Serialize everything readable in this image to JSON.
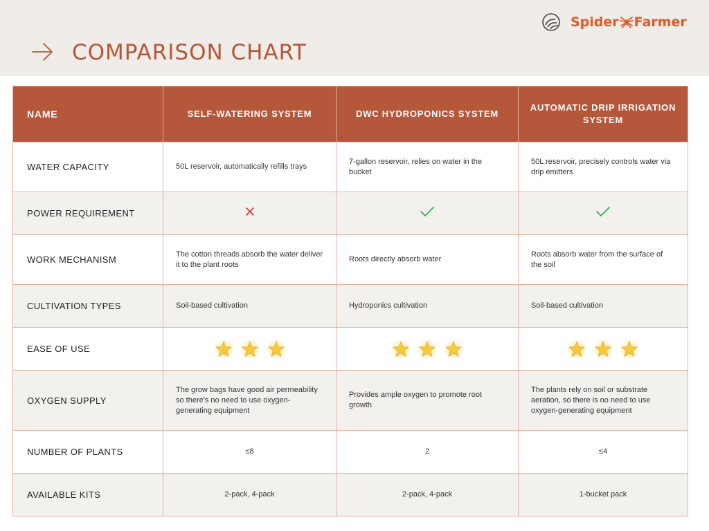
{
  "header": {
    "title": "COMPARISON CHART",
    "brand": {
      "part1": "Spider",
      "part2": "Farmer"
    },
    "icons": {
      "arrow": "arrow-right-icon",
      "logo": "spiral-logo-icon",
      "spider": "spider-icon"
    }
  },
  "table": {
    "columns": [
      "NAME",
      "SELF-WATERING SYSTEM",
      "DWC HYDROPONICS SYSTEM",
      "AUTOMATIC DRIP IRRIGATION SYSTEM"
    ],
    "rows": {
      "water_capacity": {
        "label": "WATER CAPACITY",
        "values": [
          "50L reservoir, automatically refills trays",
          "7-gallon reservoir, relies on water in the bucket",
          "50L reservoir, precisely controls water via drip emitters"
        ]
      },
      "power_requirement": {
        "label": "POWER REQUIREMENT",
        "values": [
          false,
          true,
          true
        ],
        "icons": [
          "cross-icon",
          "check-icon",
          "check-icon"
        ]
      },
      "work_mechanism": {
        "label": "WORK MECHANISM",
        "values": [
          "The cotton threads absorb the water deliver it to the plant roots",
          "Roots directly absorb water",
          "Roots absorb water from the surface of the soil"
        ]
      },
      "cultivation_types": {
        "label": "CULTIVATION TYPES",
        "values": [
          "Soil-based cultivation",
          "Hydroponics cultivation",
          "Soil-based cultivation"
        ]
      },
      "ease_of_use": {
        "label": "EASE OF USE",
        "stars": [
          3,
          3,
          3
        ],
        "star_max": 3
      },
      "oxygen_supply": {
        "label": "OXYGEN SUPPLY",
        "values": [
          "The grow bags have good air permeability so there's no need to use oxygen-generating equipment",
          "Provides ample oxygen to promote root growth",
          "The plants rely on soil or substrate aeration, so there is no need to use oxygen-generating equipment"
        ]
      },
      "number_of_plants": {
        "label": "NUMBER OF PLANTS",
        "values": [
          "≤8",
          "2",
          "≤4"
        ]
      },
      "available_kits": {
        "label": "AVAILABLE KITS",
        "values": [
          "2-pack, 4-pack",
          "2-pack, 4-pack",
          "1-bucket pack"
        ]
      }
    }
  },
  "colors": {
    "accent": "#b4573a",
    "brand": "#e05a2a",
    "header_bg": "#f0ede8",
    "alt_row_bg": "#f3f1ee",
    "border": "#dfb2a2",
    "cross": "#e53935",
    "check": "#2eb34a",
    "star": "#f7c93c"
  }
}
